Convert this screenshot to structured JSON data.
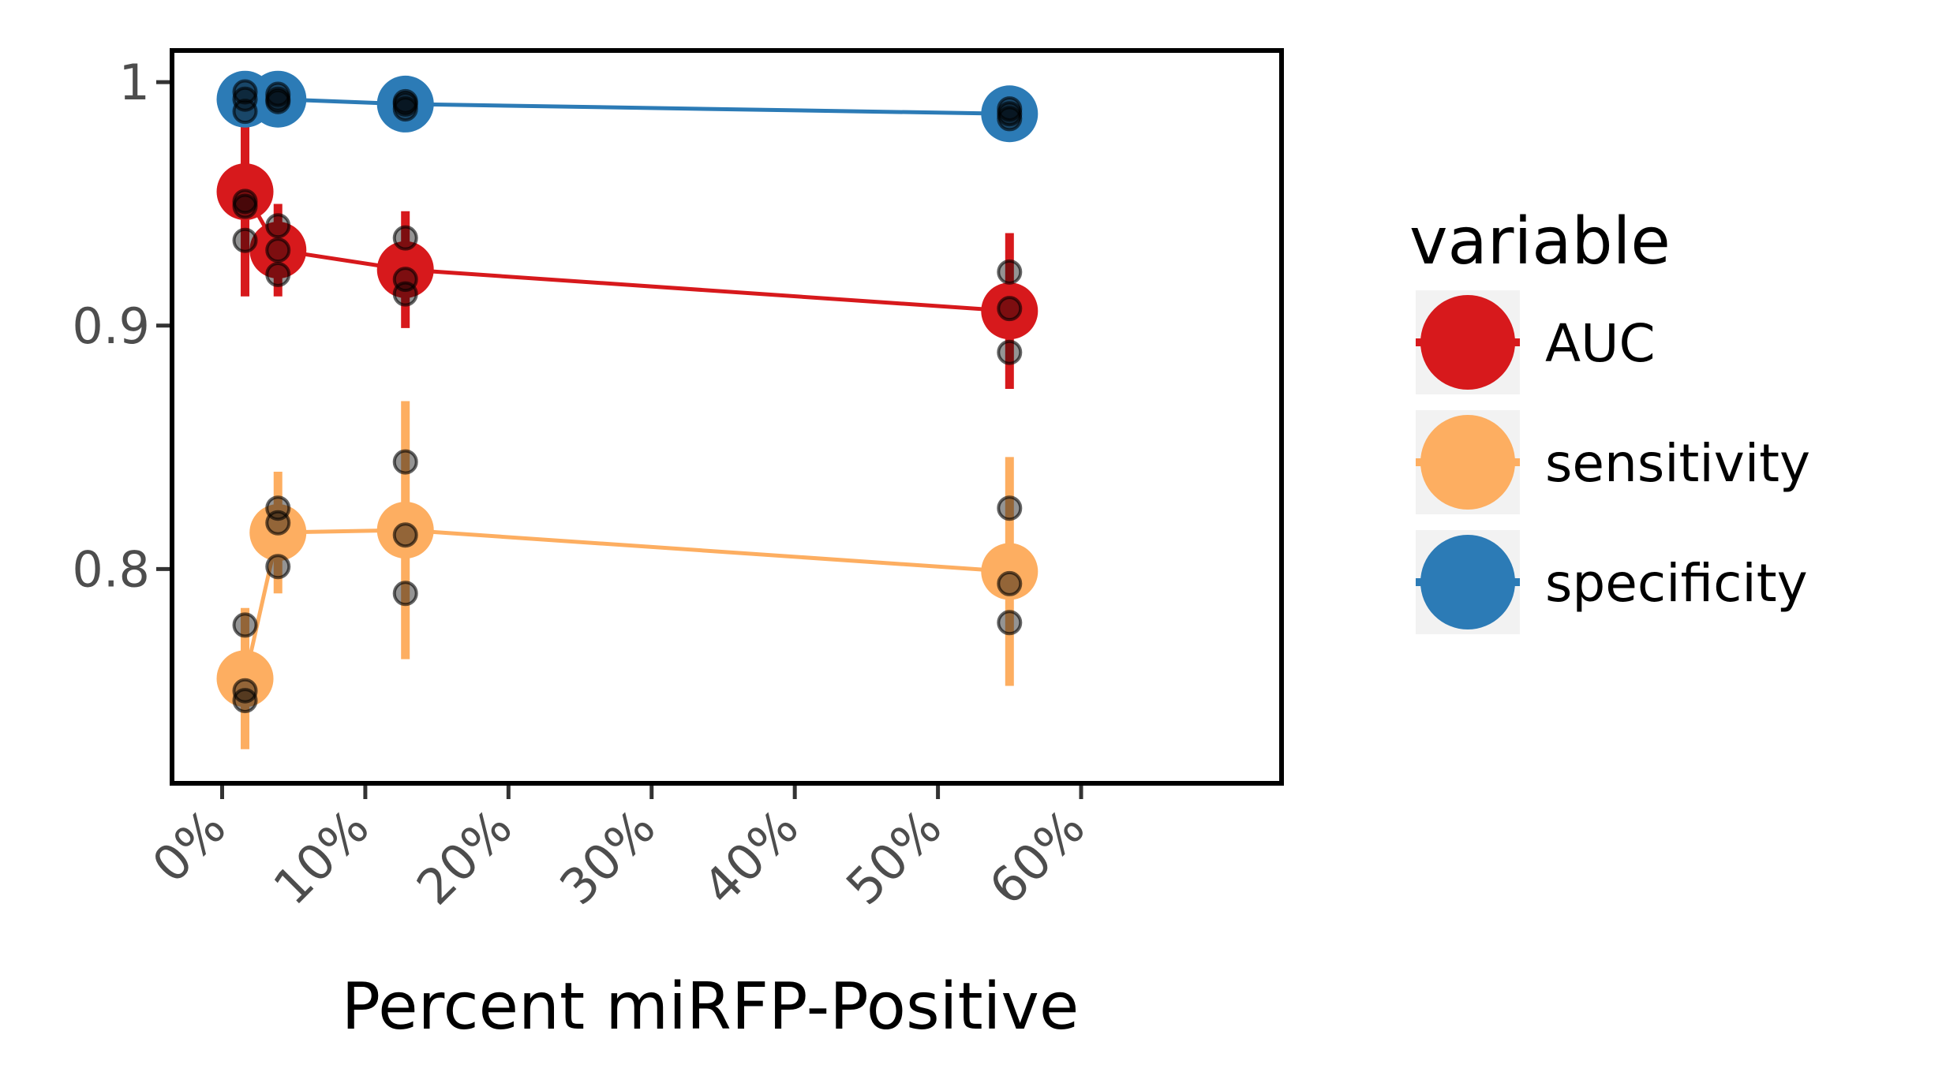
{
  "chart_data": {
    "type": "line",
    "xlabel": "Percent miRFP-Positive",
    "ylabel": "",
    "xlim": [
      -0.035,
      0.74
    ],
    "ylim": [
      0.712,
      1.013
    ],
    "x_ticks": [
      {
        "value": 0.0,
        "label": "0%"
      },
      {
        "value": 0.1,
        "label": "10%"
      },
      {
        "value": 0.2,
        "label": "20%"
      },
      {
        "value": 0.3,
        "label": "30%"
      },
      {
        "value": 0.4,
        "label": "40%"
      },
      {
        "value": 0.5,
        "label": "50%"
      },
      {
        "value": 0.6,
        "label": "60%"
      }
    ],
    "y_ticks": [
      {
        "value": 0.8,
        "label": "0.8"
      },
      {
        "value": 0.9,
        "label": "0.9"
      },
      {
        "value": 1.0,
        "label": "1"
      }
    ],
    "grid": false,
    "legend": {
      "title": "variable",
      "position": "right"
    },
    "x": [
      0.016,
      0.039,
      0.128,
      0.55
    ],
    "series": [
      {
        "name": "AUC",
        "color": "#d7191c",
        "values": [
          0.955,
          0.931,
          0.923,
          0.906
        ],
        "error_low": [
          0.912,
          0.912,
          0.899,
          0.874
        ],
        "error_high": [
          0.998,
          0.95,
          0.947,
          0.938
        ],
        "replicates": [
          [
            0.935,
            0.949,
            0.951
          ],
          [
            0.921,
            0.931,
            0.941
          ],
          [
            0.913,
            0.919,
            0.936
          ],
          [
            0.889,
            0.907,
            0.922
          ]
        ]
      },
      {
        "name": "sensitivity",
        "color": "#fdae61",
        "values": [
          0.755,
          0.815,
          0.816,
          0.799
        ],
        "error_low": [
          0.726,
          0.79,
          0.763,
          0.752
        ],
        "error_high": [
          0.784,
          0.84,
          0.869,
          0.846
        ],
        "replicates": [
          [
            0.746,
            0.75,
            0.777
          ],
          [
            0.801,
            0.819,
            0.825
          ],
          [
            0.79,
            0.814,
            0.844
          ],
          [
            0.778,
            0.794,
            0.825
          ]
        ]
      },
      {
        "name": "specificity",
        "color": "#2c7bb6",
        "values": [
          0.993,
          0.993,
          0.991,
          0.987
        ],
        "error_low": [
          0.988,
          0.99,
          0.988,
          0.984
        ],
        "error_high": [
          0.998,
          0.996,
          0.994,
          0.99
        ],
        "replicates": [
          [
            0.988,
            0.993,
            0.996
          ],
          [
            0.992,
            0.993,
            0.995
          ],
          [
            0.989,
            0.991,
            0.992
          ],
          [
            0.985,
            0.987,
            0.989
          ]
        ]
      }
    ]
  }
}
